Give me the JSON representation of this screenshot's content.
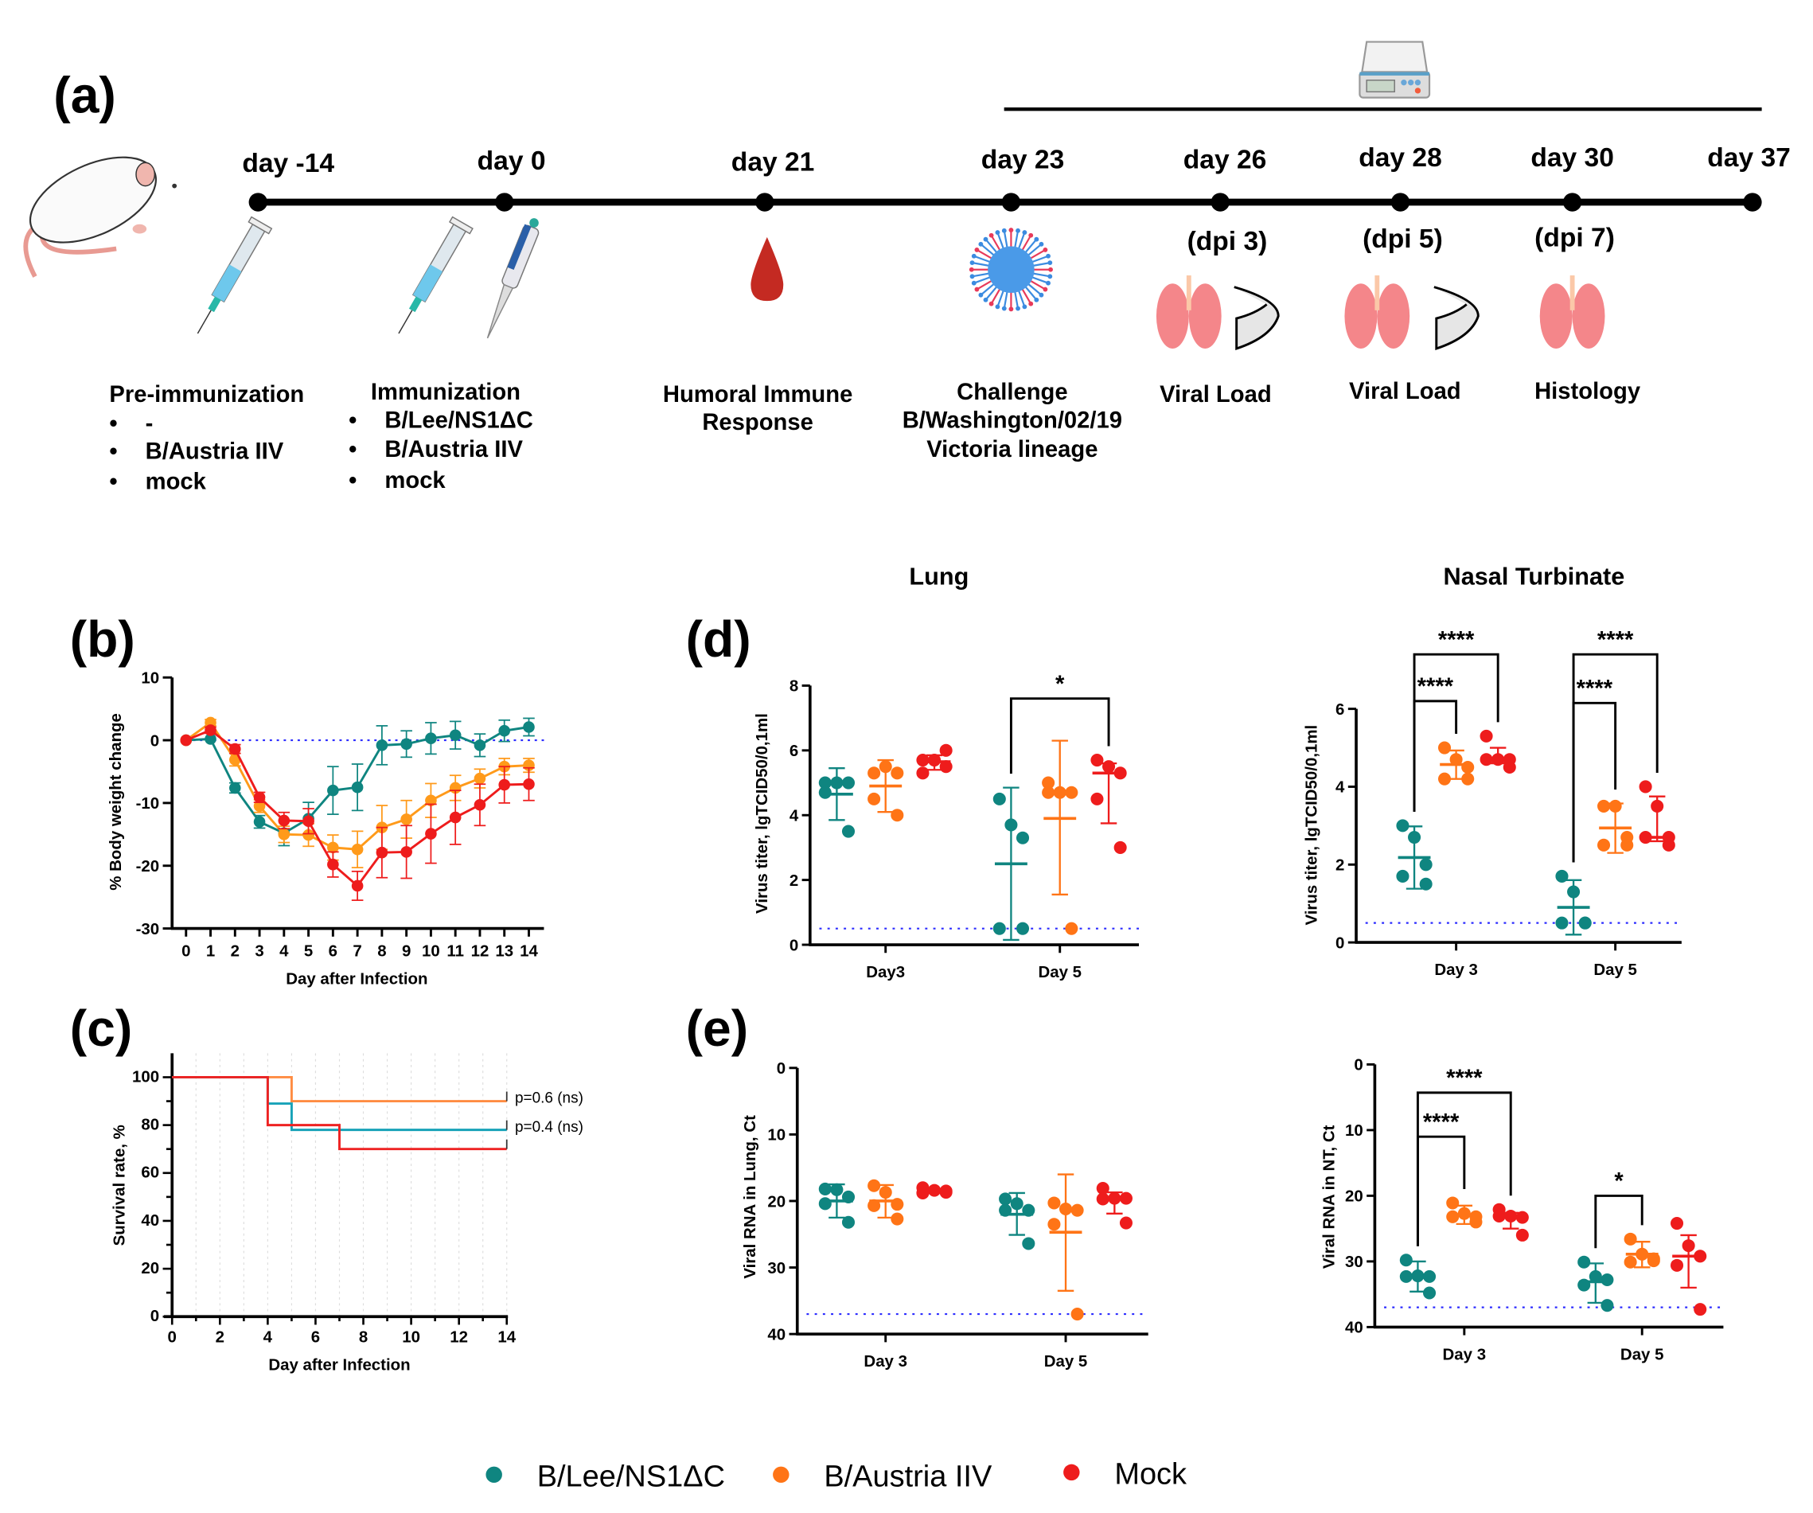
{
  "panel_labels": {
    "a": "(a)",
    "b": "(b)",
    "c": "(c)",
    "d": "(d)",
    "e": "(e)"
  },
  "timeline": {
    "days": [
      "day -14",
      "day 0",
      "day 21",
      "day 23",
      "day 26",
      "day 28",
      "day 30",
      "day 37"
    ],
    "dpi": [
      "(dpi 3)",
      "(dpi 5)",
      "(dpi 7)"
    ],
    "pre_immunization": {
      "title": "Pre-immunization",
      "items": [
        "-",
        "B/Austria IIV",
        "mock"
      ]
    },
    "immunization": {
      "title": "Immunization",
      "items": [
        "B/Lee/NS1ΔC",
        "B/Austria IIV",
        "mock"
      ]
    },
    "humoral": [
      "Humoral Immune",
      "Response"
    ],
    "challenge": [
      "Challenge",
      "B/Washington/02/19",
      "Victoria lineage"
    ],
    "viral_load_1": "Viral Load",
    "viral_load_2": "Viral Load",
    "histology": "Histology",
    "icons": [
      "mouse-icon",
      "syringe-icon",
      "pipette-icon",
      "blood-drop-icon",
      "virus-icon",
      "lungs-icon",
      "nasal-turbinate-icon",
      "scale-icon"
    ]
  },
  "colors": {
    "teal": "#0f8580",
    "orange": "#ff7416",
    "red": "#ee1c1c",
    "line_orange": "#ff9a1a",
    "surv_teal": "#17a2b8",
    "surv_orange": "#ff8c42",
    "surv_red": "#ee2222",
    "lod": "#2b2bff"
  },
  "legend": [
    {
      "label": "B/Lee/NS1ΔC",
      "color": "#0f8580"
    },
    {
      "label": "B/Austria IIV",
      "color": "#ff7416"
    },
    {
      "label": "Mock",
      "color": "#ee1c1c"
    }
  ],
  "chart_data": [
    {
      "id": "b",
      "type": "line",
      "xlabel": "Day after Infection",
      "ylabel": "% Body weight change",
      "x": [
        0,
        1,
        2,
        3,
        4,
        5,
        6,
        7,
        8,
        9,
        10,
        11,
        12,
        13,
        14
      ],
      "xlim": [
        0,
        14
      ],
      "ylim": [
        -30,
        10
      ],
      "yticks": [
        10,
        0,
        -10,
        -20,
        -30
      ],
      "reference_line": 0,
      "series": [
        {
          "name": "B/Lee/NS1ΔC",
          "color": "#0f8580",
          "values": [
            0,
            0.2,
            -7.6,
            -13,
            -14.8,
            -12.5,
            -8,
            -7.5,
            -0.8,
            -0.6,
            0.3,
            0.8,
            -0.8,
            1.5,
            2.1
          ],
          "errors": [
            0,
            0,
            0.8,
            1,
            2,
            2.6,
            3.8,
            3.7,
            3.1,
            2.1,
            2.5,
            2.2,
            1.8,
            1.7,
            1.4
          ]
        },
        {
          "name": "B/Austria IIV",
          "color": "#ff9a1a",
          "values": [
            0,
            2.8,
            -3.1,
            -10.5,
            -15,
            -15.1,
            -17.1,
            -17.4,
            -13.9,
            -12.6,
            -9.6,
            -7.6,
            -6.1,
            -4.2,
            -4
          ],
          "errors": [
            0,
            0.5,
            1,
            1,
            1.3,
            1.8,
            2,
            2.9,
            3.5,
            3,
            2.7,
            2,
            1.5,
            1.3,
            1.1
          ]
        },
        {
          "name": "Mock",
          "color": "#ee1c1c",
          "values": [
            0,
            1.6,
            -1.4,
            -9.1,
            -12.8,
            -12.9,
            -19.8,
            -23.2,
            -17.9,
            -17.8,
            -14.9,
            -12.3,
            -10.3,
            -7.1,
            -7
          ],
          "errors": [
            0,
            0.5,
            0.7,
            0.8,
            1.3,
            2,
            2,
            2.3,
            4,
            4.2,
            4.7,
            4.3,
            3.3,
            2.9,
            2.6
          ]
        }
      ]
    },
    {
      "id": "c",
      "type": "line",
      "step": true,
      "xlabel": "Day after Infection",
      "ylabel": "Survival rate, %",
      "xlim": [
        0,
        14
      ],
      "ylim": [
        0,
        110
      ],
      "xticks": [
        0,
        2,
        4,
        6,
        8,
        10,
        12,
        14
      ],
      "yticks": [
        0,
        20,
        40,
        60,
        80,
        100
      ],
      "grid": "vertical-dotted",
      "series": [
        {
          "name": "B/Austria IIV",
          "color": "#ff8c42",
          "steps": [
            [
              0,
              100
            ],
            [
              5,
              90
            ],
            [
              14,
              90
            ]
          ]
        },
        {
          "name": "B/Lee/NS1ΔC",
          "color": "#17a2b8",
          "steps": [
            [
              0,
              100
            ],
            [
              4,
              89
            ],
            [
              5,
              78
            ],
            [
              14,
              78
            ]
          ]
        },
        {
          "name": "Mock",
          "color": "#ee2222",
          "steps": [
            [
              0,
              100
            ],
            [
              4,
              80
            ],
            [
              7,
              70
            ],
            [
              14,
              70
            ]
          ]
        }
      ],
      "annotations": [
        "p=0.6 (ns)",
        "p=0.4 (ns)"
      ]
    },
    {
      "id": "d-lung",
      "type": "scatter",
      "title": "Lung",
      "ylabel": "Virus titer, lgTCID50/0,1ml",
      "categories": [
        "Day3",
        "Day 5"
      ],
      "ylim": [
        0,
        8
      ],
      "yticks": [
        0,
        2,
        4,
        6,
        8
      ],
      "detection_limit": 0.5,
      "groups": [
        [
          {
            "name": "B/Lee/NS1ΔC",
            "points": [
              5,
              5,
              5,
              4.7,
              3.5
            ],
            "mean": 4.65,
            "range": [
              3.85,
              5.45
            ]
          },
          {
            "name": "B/Austria IIV",
            "points": [
              5.3,
              5.5,
              5.3,
              4.5,
              4.0
            ],
            "mean": 4.9,
            "range": [
              4.1,
              5.7
            ]
          },
          {
            "name": "Mock",
            "points": [
              5.7,
              5.7,
              6.0,
              5.3,
              5.5
            ],
            "mean": 5.65,
            "range": [
              5.4,
              5.85
            ]
          }
        ],
        [
          {
            "name": "B/Lee/NS1ΔC",
            "points": [
              4.5,
              3.7,
              3.3,
              0.5,
              0.5
            ],
            "mean": 2.5,
            "range": [
              0.15,
              4.85
            ]
          },
          {
            "name": "B/Austria IIV",
            "points": [
              5.0,
              4.7,
              4.7,
              4.7,
              0.5
            ],
            "mean": 3.9,
            "range": [
              1.55,
              6.3
            ]
          },
          {
            "name": "Mock",
            "points": [
              5.7,
              5.5,
              5.3,
              4.5,
              3.0
            ],
            "mean": 5.3,
            "range": [
              3.75,
              5.6
            ]
          }
        ]
      ],
      "significance": [
        {
          "category": 1,
          "from": 0,
          "to": 2,
          "y": 7.6,
          "label": "*"
        }
      ]
    },
    {
      "id": "d-nt",
      "type": "scatter",
      "title": "Nasal Turbinate",
      "ylabel": "Virus titer, lgTCID50/0,1ml",
      "categories": [
        "Day 3",
        "Day 5"
      ],
      "ylim": [
        0,
        6
      ],
      "yticks": [
        0,
        2,
        4,
        6
      ],
      "detection_limit": 0.5,
      "groups": [
        [
          {
            "name": "B/Lee/NS1ΔC",
            "points": [
              3.0,
              2.7,
              2.0,
              1.7,
              1.5
            ],
            "mean": 2.18,
            "range": [
              1.38,
              2.98
            ]
          },
          {
            "name": "B/Austria IIV",
            "points": [
              5.0,
              4.7,
              4.5,
              4.2,
              4.2
            ],
            "mean": 4.57,
            "range": [
              4.2,
              4.93
            ]
          },
          {
            "name": "Mock",
            "points": [
              5.3,
              4.7,
              4.7,
              4.7,
              4.5
            ],
            "mean": 4.7,
            "range": [
              4.6,
              5.0
            ]
          }
        ],
        [
          {
            "name": "B/Lee/NS1ΔC",
            "points": [
              1.7,
              1.3,
              0.5,
              0.5,
              0.5
            ],
            "mean": 0.9,
            "range": [
              0.2,
              1.6
            ]
          },
          {
            "name": "B/Austria IIV",
            "points": [
              3.5,
              3.5,
              2.7,
              2.5,
              2.5
            ],
            "mean": 2.94,
            "range": [
              2.3,
              3.57
            ]
          },
          {
            "name": "Mock",
            "points": [
              4.0,
              3.5,
              2.7,
              2.7,
              2.5
            ],
            "mean": 2.7,
            "range": [
              2.6,
              3.75
            ]
          }
        ]
      ],
      "significance": [
        {
          "category": 0,
          "from": 0,
          "to": 1,
          "y": 6.2,
          "label": "****"
        },
        {
          "category": 0,
          "from": 0,
          "to": 2,
          "y": 7.4,
          "label": "****"
        },
        {
          "category": 1,
          "from": 0,
          "to": 1,
          "y": 6.15,
          "label": "****"
        },
        {
          "category": 1,
          "from": 0,
          "to": 2,
          "y": 7.4,
          "label": "****"
        }
      ]
    },
    {
      "id": "e-lung",
      "type": "scatter",
      "ylabel": "Viral RNA in Lung, Ct",
      "categories": [
        "Day 3",
        "Day 5"
      ],
      "ylim": [
        40,
        0
      ],
      "y_inverted": true,
      "yticks": [
        0,
        10,
        20,
        30,
        40
      ],
      "detection_limit": 37,
      "groups": [
        [
          {
            "name": "B/Lee/NS1ΔC",
            "points": [
              18.2,
              18.3,
              19.4,
              20.4,
              23.2
            ],
            "mean": 20,
            "range": [
              17.5,
              22.5
            ]
          },
          {
            "name": "B/Austria IIV",
            "points": [
              17.7,
              18.7,
              20.5,
              20.7,
              22.7
            ],
            "mean": 20,
            "range": [
              17.6,
              22.5
            ]
          },
          {
            "name": "Mock",
            "points": [
              18.0,
              18.4,
              18.7,
              18.8,
              18.5
            ],
            "mean": 18.5,
            "range": [
              18.2,
              18.8
            ]
          }
        ],
        [
          {
            "name": "B/Lee/NS1ΔC",
            "points": [
              19.7,
              20.4,
              21.4,
              21.4,
              26.4
            ],
            "mean": 22,
            "range": [
              18.8,
              25.1
            ]
          },
          {
            "name": "B/Austria IIV",
            "points": [
              20.3,
              21.2,
              21.4,
              23.5,
              37
            ],
            "mean": 24.7,
            "range": [
              16,
              33.5
            ]
          },
          {
            "name": "Mock",
            "points": [
              18.1,
              19.6,
              19.6,
              19.7,
              23.3
            ],
            "mean": 19.6,
            "range": [
              18.7,
              21.9
            ]
          }
        ]
      ],
      "significance": []
    },
    {
      "id": "e-nt",
      "type": "scatter",
      "ylabel": "Viral RNA in NT, Ct",
      "categories": [
        "Day 3",
        "Day 5"
      ],
      "ylim": [
        40,
        0
      ],
      "y_inverted": true,
      "yticks": [
        0,
        10,
        20,
        30,
        40
      ],
      "detection_limit": 37,
      "groups": [
        [
          {
            "name": "B/Lee/NS1ΔC",
            "points": [
              29.8,
              32.2,
              32.3,
              32.3,
              34.8
            ],
            "mean": 32.3,
            "range": [
              30,
              34.6
            ]
          },
          {
            "name": "B/Austria IIV",
            "points": [
              21.1,
              22.7,
              23.2,
              23.2,
              24
            ],
            "mean": 23,
            "range": [
              21.5,
              24.3
            ]
          },
          {
            "name": "Mock",
            "points": [
              22.1,
              23.1,
              23.3,
              23.1,
              26
            ],
            "mean": 23.1,
            "range": [
              22.6,
              25
            ]
          }
        ],
        [
          {
            "name": "B/Lee/NS1ΔC",
            "points": [
              30.1,
              32.3,
              32.8,
              33.6,
              36.7
            ],
            "mean": 33.1,
            "range": [
              30.3,
              36.3
            ]
          },
          {
            "name": "B/Austria IIV",
            "points": [
              26.6,
              28.9,
              29.6,
              30.1,
              29.9
            ],
            "mean": 28.9,
            "range": [
              27,
              30.9
            ]
          },
          {
            "name": "Mock",
            "points": [
              24.2,
              27.6,
              29.2,
              30.6,
              37.3
            ],
            "mean": 29.2,
            "range": [
              26,
              34
            ]
          }
        ]
      ],
      "significance": [
        {
          "category": 0,
          "from": 0,
          "to": 1,
          "y": 11,
          "label": "****"
        },
        {
          "category": 0,
          "from": 0,
          "to": 2,
          "y": 4.3,
          "label": "****"
        },
        {
          "category": 1,
          "from": 0,
          "to": 1,
          "y": 20,
          "label": "*"
        }
      ]
    }
  ]
}
